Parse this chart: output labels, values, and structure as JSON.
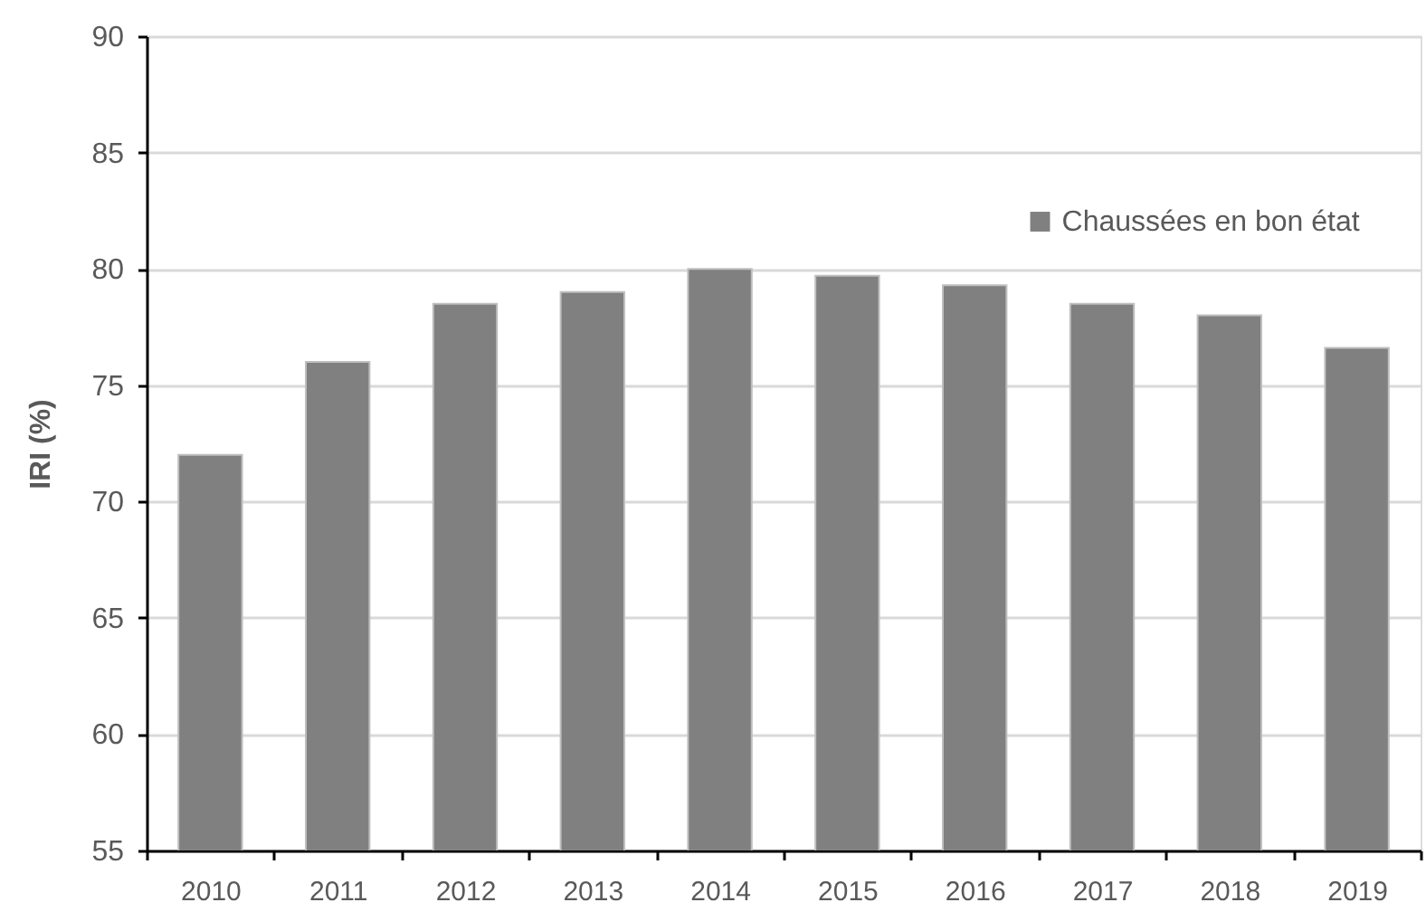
{
  "chart_data": {
    "type": "bar",
    "ylabel": "IRI (%)",
    "categories": [
      "2010",
      "2011",
      "2012",
      "2013",
      "2014",
      "2015",
      "2016",
      "2017",
      "2018",
      "2019"
    ],
    "series": [
      {
        "name": "Chaussées en bon état",
        "color": "#808080",
        "values": [
          72,
          76,
          78.5,
          79,
          80,
          79.7,
          79.3,
          78.5,
          78,
          76.6
        ]
      }
    ],
    "ylim": [
      55,
      90
    ],
    "yticks": [
      55,
      60,
      65,
      70,
      75,
      80,
      85,
      90
    ],
    "grid": "y",
    "legend": "top right"
  }
}
